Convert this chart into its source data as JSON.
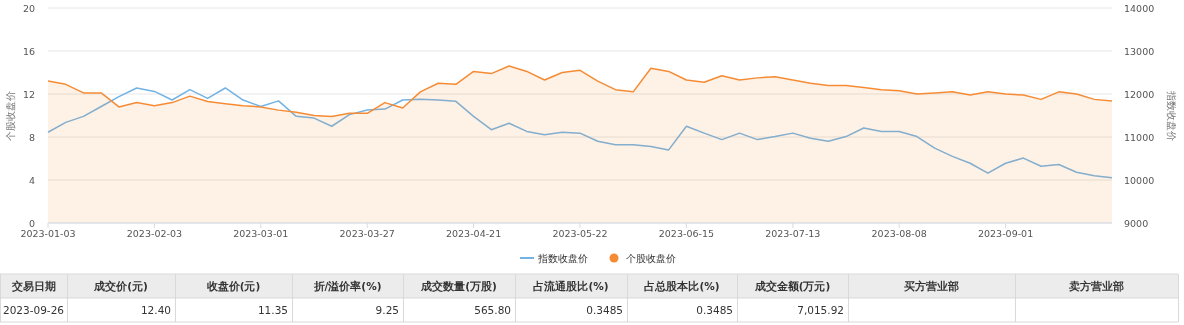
{
  "chart_data": {
    "type": "line",
    "ylabel": "个股收盘价",
    "y2label": "指数收盘价",
    "categories": [
      "2023-01-03",
      null,
      null,
      null,
      null,
      null,
      "2023-02-03",
      null,
      null,
      null,
      null,
      null,
      "2023-03-01",
      null,
      null,
      null,
      null,
      null,
      "2023-03-27",
      null,
      null,
      null,
      null,
      null,
      "2023-04-21",
      null,
      null,
      null,
      null,
      null,
      "2023-05-22",
      null,
      null,
      null,
      null,
      null,
      "2023-06-15",
      null,
      null,
      null,
      null,
      null,
      "2023-07-13",
      null,
      null,
      null,
      null,
      null,
      "2023-08-08",
      null,
      null,
      null,
      null,
      null,
      "2023-09-01",
      null,
      null,
      null,
      null,
      null,
      null
    ],
    "ylim": [
      0,
      20
    ],
    "yticks": [
      0,
      4,
      8,
      12,
      16,
      20
    ],
    "y2lim": [
      9000,
      14000
    ],
    "y2ticks": [
      9000,
      10000,
      11000,
      12000,
      13000,
      14000
    ],
    "grid": "y",
    "legend": "bottom",
    "marker": "none",
    "series": [
      {
        "name": "指数收盘价",
        "axis": "y2",
        "color": "#73b3e3",
        "values": [
          11110,
          11340,
          11480,
          11710,
          11940,
          12140,
          12060,
          11860,
          12100,
          11900,
          12140,
          11860,
          11710,
          11840,
          11480,
          11440,
          11250,
          11520,
          11630,
          11650,
          11860,
          11880,
          11860,
          11830,
          11480,
          11170,
          11320,
          11130,
          11050,
          11110,
          11090,
          10900,
          10820,
          10820,
          10780,
          10700,
          11250,
          11090,
          10940,
          11090,
          10940,
          11010,
          11090,
          10970,
          10900,
          11010,
          11210,
          11130,
          11130,
          11010,
          10740,
          10550,
          10390,
          10160,
          10390,
          10510,
          10320,
          10360,
          10180,
          10100,
          10050
        ]
      },
      {
        "name": "个股收盘价",
        "type": "area",
        "color": "#f58c35",
        "values": [
          13.2,
          12.9,
          12.1,
          12.1,
          10.8,
          11.2,
          10.9,
          11.2,
          11.8,
          11.3,
          11.1,
          10.9,
          10.8,
          10.5,
          10.3,
          10.0,
          9.9,
          10.2,
          10.2,
          11.2,
          10.7,
          12.2,
          13.0,
          12.9,
          14.1,
          13.9,
          14.6,
          14.1,
          13.3,
          14.0,
          14.2,
          13.2,
          12.4,
          12.2,
          14.4,
          14.1,
          13.3,
          13.1,
          13.7,
          13.3,
          13.5,
          13.6,
          13.3,
          13.0,
          12.8,
          12.8,
          12.6,
          12.4,
          12.3,
          12.0,
          12.1,
          12.2,
          11.9,
          12.2,
          12.0,
          11.9,
          11.5,
          12.2,
          12.0,
          11.5,
          11.35
        ]
      }
    ],
    "annotations": [
      "交易日期",
      "成交价(元)",
      "收盘价(元)",
      "折/溢价率(%)",
      "成交数量(万股)",
      "占流通股比(%)",
      "占总股本比(%)",
      "成交金额(万元)",
      "买方营业部",
      "卖方营业部",
      "2023-09-26",
      "12.40",
      "11.35",
      "9.25",
      "565.80",
      "0.3485",
      "0.3485",
      "7,015.92"
    ]
  }
}
